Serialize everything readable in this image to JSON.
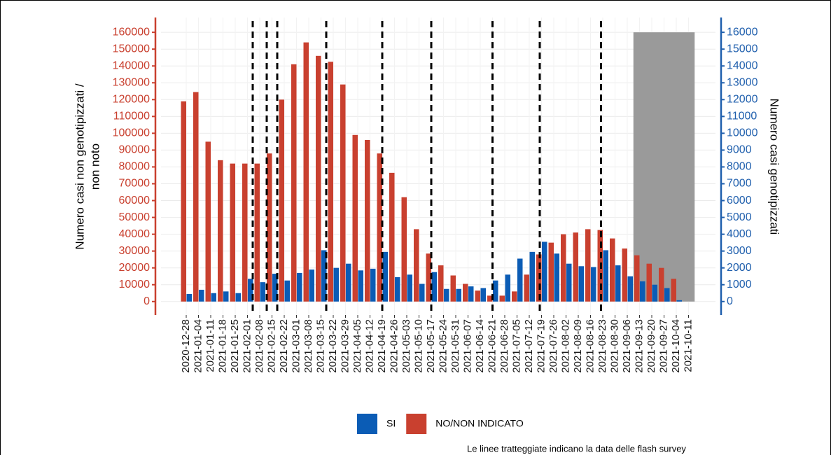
{
  "chart_data": {
    "type": "bar",
    "y_label": [
      "Numero casi non genotipizzati /",
      "non noto"
    ],
    "y2_label": "Numero casi genotipizzati",
    "note": "Le linee tratteggiate indicano la data delle flash survey",
    "categories": [
      "2020-12-28",
      "2021-01-04",
      "2021-01-11",
      "2021-01-18",
      "2021-01-25",
      "2021-02-01",
      "2021-02-08",
      "2021-02-15",
      "2021-02-22",
      "2021-03-01",
      "2021-03-08",
      "2021-03-15",
      "2021-03-22",
      "2021-03-29",
      "2021-04-05",
      "2021-04-12",
      "2021-04-19",
      "2021-04-26",
      "2021-05-03",
      "2021-05-10",
      "2021-05-17",
      "2021-05-24",
      "2021-05-31",
      "2021-06-07",
      "2021-06-14",
      "2021-06-21",
      "2021-06-28",
      "2021-07-05",
      "2021-07-12",
      "2021-07-19",
      "2021-07-26",
      "2021-08-02",
      "2021-08-09",
      "2021-08-16",
      "2021-08-23",
      "2021-08-30",
      "2021-09-06",
      "2021-09-13",
      "2021-09-20",
      "2021-09-27",
      "2021-10-04",
      "2021-10-11"
    ],
    "series": [
      {
        "name": "SI",
        "color": "#0b5cb5",
        "axis": "y2",
        "values": [
          450,
          700,
          500,
          600,
          500,
          1350,
          1150,
          1650,
          1250,
          1700,
          1900,
          3050,
          2000,
          2250,
          1850,
          1950,
          2950,
          1450,
          1600,
          1050,
          1750,
          750,
          750,
          900,
          800,
          1250,
          1600,
          2550,
          2950,
          3550,
          2850,
          2250,
          2100,
          2050,
          3050,
          2150,
          1500,
          1200,
          1000,
          800,
          80,
          0
        ]
      },
      {
        "name": "NO/NON INDICATO",
        "color": "#c9402f",
        "values": [
          119000,
          124500,
          95000,
          84000,
          82000,
          82000,
          82000,
          88000,
          120000,
          141000,
          154000,
          146000,
          142500,
          129000,
          99000,
          96000,
          88000,
          76500,
          62000,
          43000,
          28500,
          21500,
          15500,
          10500,
          6500,
          3500,
          3500,
          6000,
          16000,
          28000,
          35000,
          40000,
          41000,
          43000,
          42500,
          37500,
          31500,
          27500,
          22500,
          20000,
          13500,
          0
        ]
      }
    ],
    "flash_surveys": [
      "2021-02-04",
      "2021-02-12",
      "2021-02-18",
      "2021-03-18",
      "2021-04-19",
      "2021-05-17",
      "2021-06-21",
      "2021-07-18",
      "2021-08-22"
    ],
    "shaded_from": "2021-09-13",
    "ylim": [
      -8000,
      168800
    ],
    "yticks": [
      0,
      10000,
      20000,
      30000,
      40000,
      50000,
      60000,
      70000,
      80000,
      90000,
      100000,
      110000,
      120000,
      130000,
      140000,
      150000,
      160000
    ],
    "y2lim": [
      -800,
      16880
    ],
    "y2ticks": [
      0,
      1000,
      2000,
      3000,
      4000,
      5000,
      6000,
      7000,
      8000,
      9000,
      10000,
      11000,
      12000,
      13000,
      14000,
      15000,
      16000
    ],
    "y_color": "#c9402f",
    "y2_color": "#1f5fad",
    "grid": true
  }
}
